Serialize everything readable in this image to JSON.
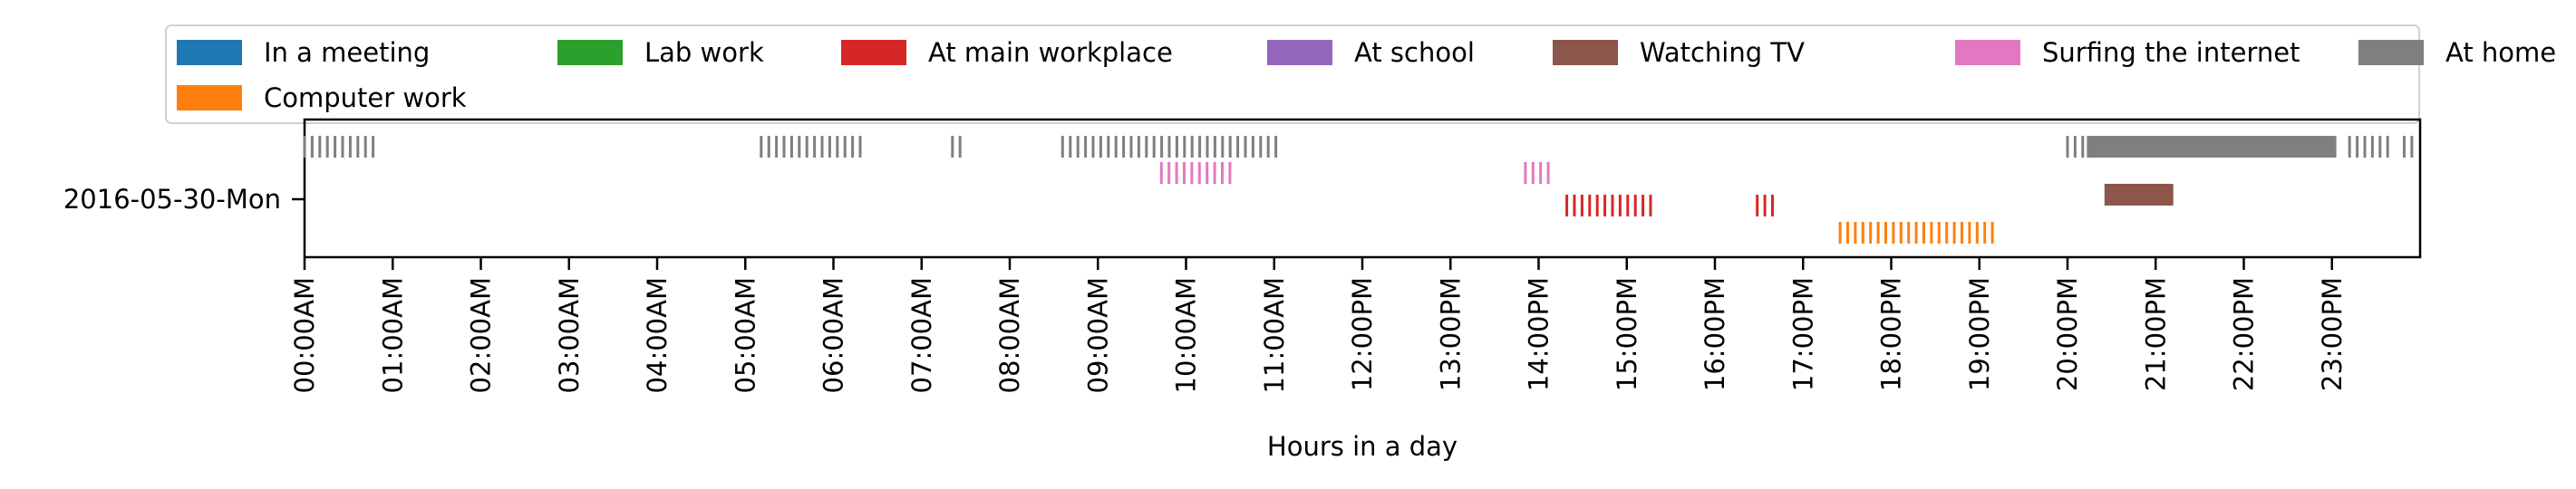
{
  "chart_data": {
    "type": "timeline",
    "title": "",
    "xlabel": "Hours in a day",
    "ylabel": "",
    "row_label": "2016-05-30-Mon",
    "xlim_hours": [
      0,
      24
    ],
    "x_tick_labels": [
      "00:00AM",
      "01:00AM",
      "02:00AM",
      "03:00AM",
      "04:00AM",
      "05:00AM",
      "06:00AM",
      "07:00AM",
      "08:00AM",
      "09:00AM",
      "10:00AM",
      "11:00AM",
      "12:00PM",
      "13:00PM",
      "14:00PM",
      "15:00PM",
      "16:00PM",
      "17:00PM",
      "18:00PM",
      "19:00PM",
      "20:00PM",
      "21:00PM",
      "22:00PM",
      "23:00PM"
    ],
    "grid": false,
    "legend_position": "top",
    "legend": [
      {
        "name": "In a meeting",
        "color": "#1f77b4"
      },
      {
        "name": "Lab work",
        "color": "#2ca02c"
      },
      {
        "name": "At main workplace",
        "color": "#d62728"
      },
      {
        "name": "At school",
        "color": "#9467bd"
      },
      {
        "name": "Watching TV",
        "color": "#8c564b"
      },
      {
        "name": "Surfing the internet",
        "color": "#e377c2"
      },
      {
        "name": "At home",
        "color": "#7f7f7f"
      },
      {
        "name": "Computer work",
        "color": "#ff7f0e"
      }
    ],
    "series": [
      {
        "name": "At home",
        "color": "#7f7f7f",
        "lane": 0,
        "dashed": [
          [
            0.0,
            0.78
          ],
          [
            5.18,
            6.32
          ],
          [
            7.35,
            7.47
          ],
          [
            8.6,
            11.05
          ],
          [
            20.0,
            20.22
          ],
          [
            23.2,
            23.68
          ],
          [
            23.82,
            23.92
          ]
        ],
        "solid": [
          [
            20.22,
            23.05
          ]
        ]
      },
      {
        "name": "Surfing the internet",
        "color": "#e377c2",
        "lane": 1,
        "dashed": [
          [
            9.72,
            10.55
          ],
          [
            13.85,
            14.15
          ]
        ],
        "solid": []
      },
      {
        "name": "Watching TV",
        "color": "#8c564b",
        "lane": 2,
        "dashed": [],
        "solid": [
          [
            20.42,
            21.2
          ]
        ]
      },
      {
        "name": "At main workplace",
        "color": "#d62728",
        "lane": 3,
        "dashed": [
          [
            14.32,
            15.32
          ],
          [
            16.48,
            16.72
          ]
        ],
        "solid": []
      },
      {
        "name": "Computer work",
        "color": "#ff7f0e",
        "lane": 4,
        "dashed": [
          [
            17.42,
            19.22
          ]
        ],
        "solid": []
      }
    ]
  }
}
